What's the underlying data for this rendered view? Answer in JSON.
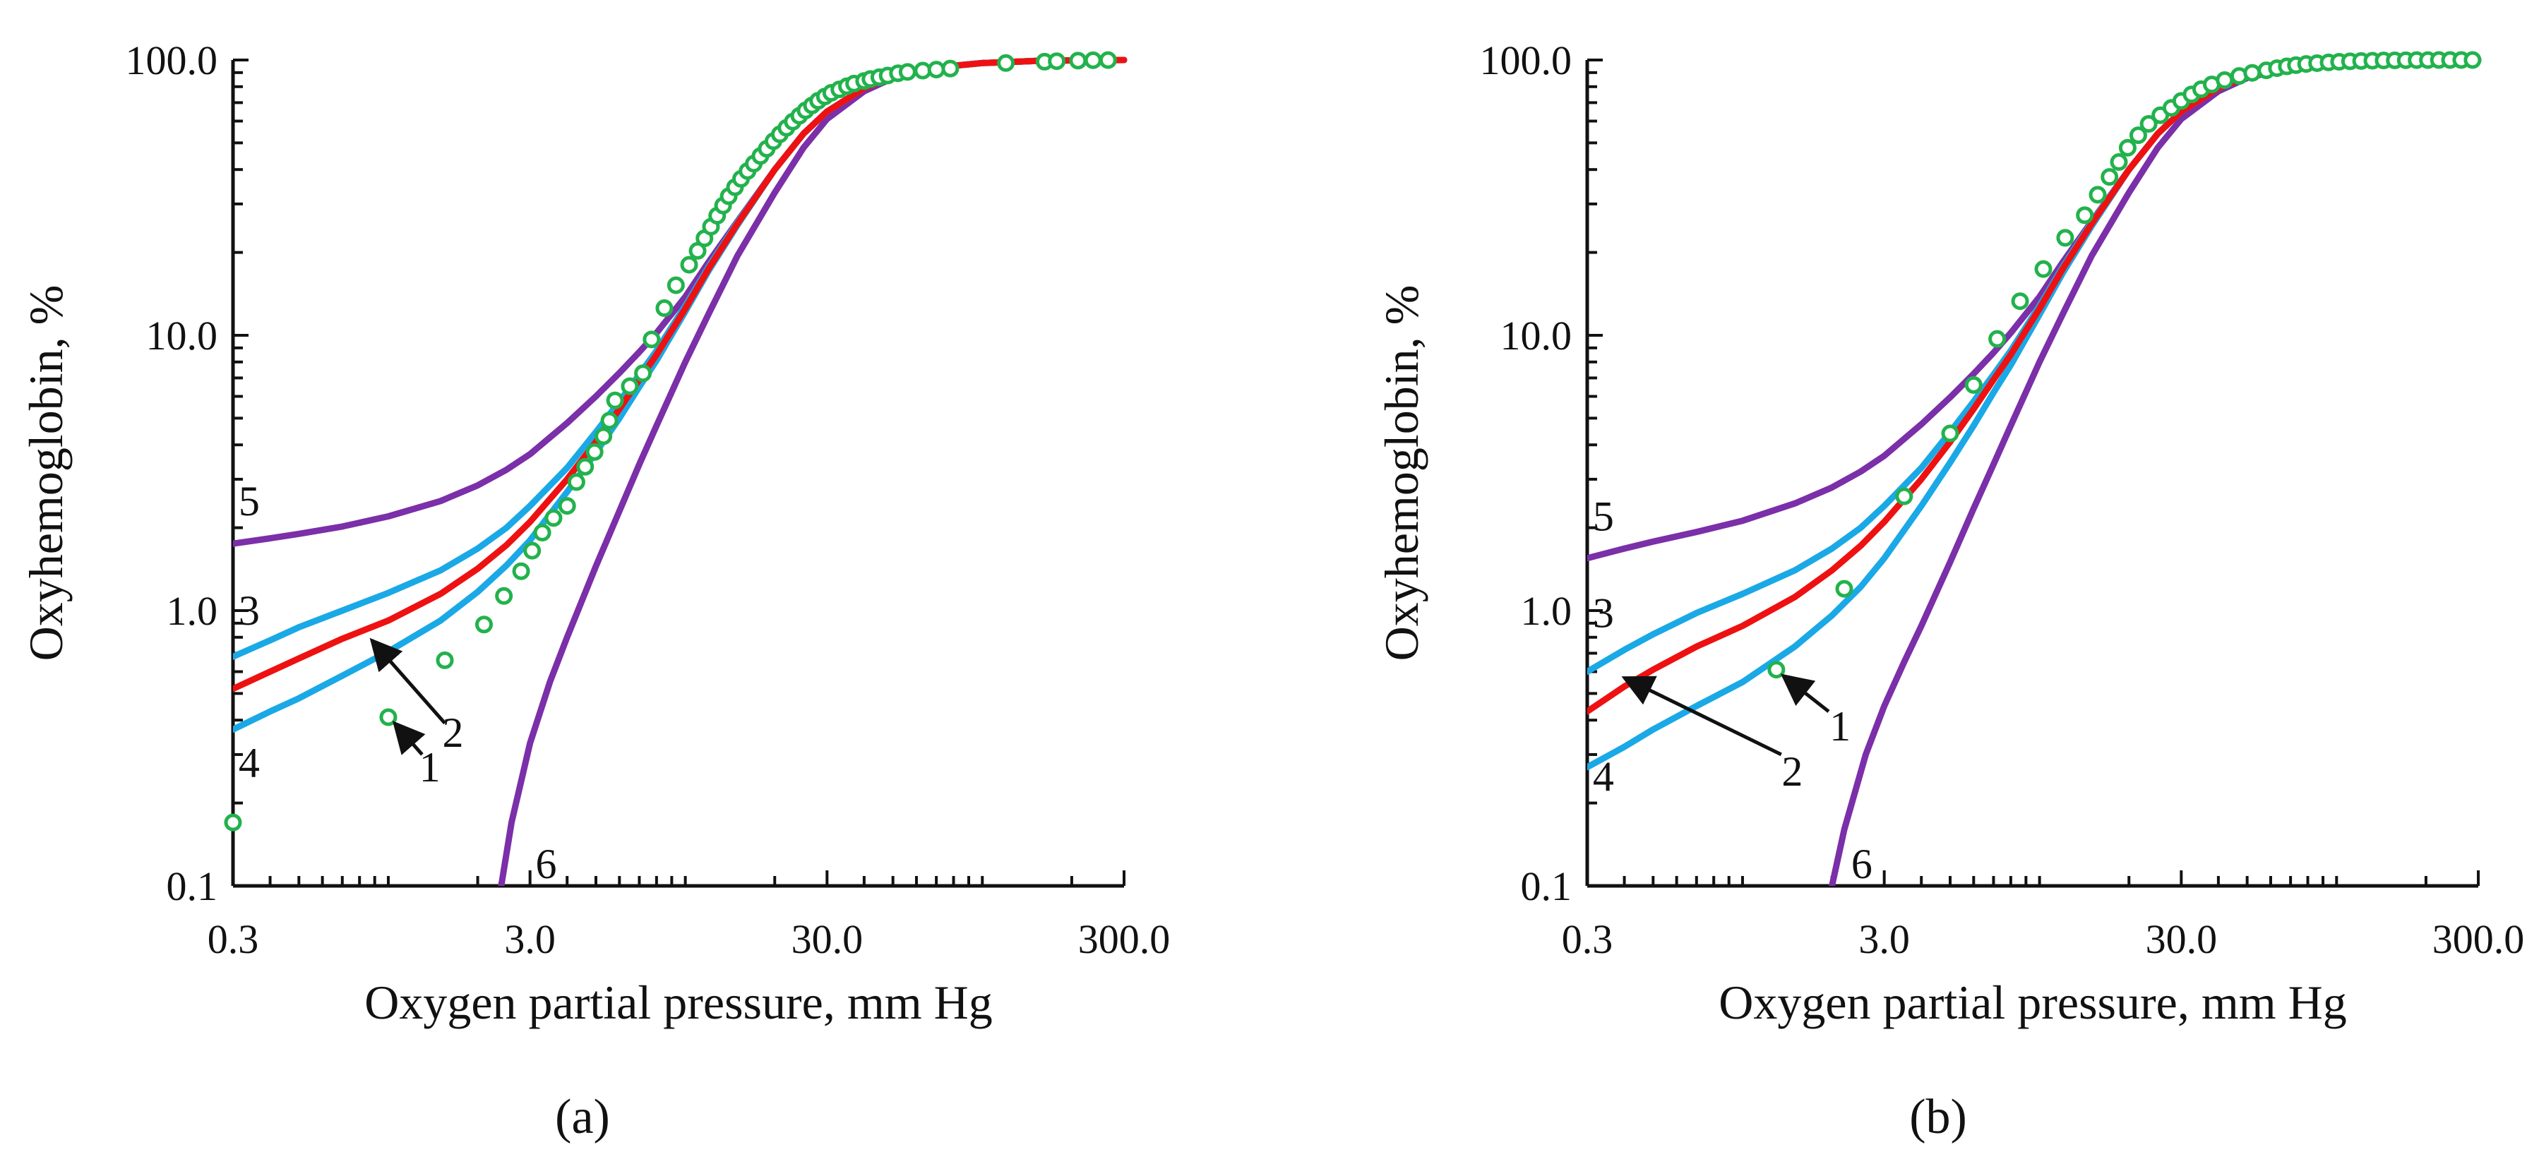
{
  "figure": {
    "panel_labels": [
      "(a)",
      "(b)"
    ]
  },
  "colors": {
    "experimental": "#22b24c",
    "model_red": "#ee1111",
    "model_blue": "#1aa9e6",
    "model_purple": "#7b2fa8",
    "axis": "#111111"
  },
  "chart_data": [
    {
      "type": "line",
      "panel": "(a)",
      "xlabel": "Oxygen partial pressure, mm Hg",
      "ylabel": "Oxyhemoglobin, %",
      "xscale": "log",
      "yscale": "log",
      "xlim": [
        0.3,
        300.0
      ],
      "ylim": [
        0.1,
        100.0
      ],
      "xticks": [
        "0.3",
        "3.0",
        "30.0",
        "300.0"
      ],
      "yticks": [
        "0.1",
        "1.0",
        "10.0",
        "100.0"
      ],
      "grid": false,
      "series": [
        {
          "name": "1",
          "style": "markers",
          "color": "#22b24c",
          "x": [
            0.3,
            1.0,
            1.55,
            2.1,
            2.45,
            2.8,
            3.05,
            3.3,
            3.6,
            4.0,
            4.3,
            4.6,
            4.95,
            5.3,
            5.55,
            5.8,
            6.5,
            7.2,
            7.7,
            8.5,
            9.3,
            10.3,
            11.0,
            11.6,
            12.2,
            12.8,
            13.4,
            14.0,
            14.7,
            15.4,
            16.2,
            17.0,
            17.9,
            18.8,
            19.8,
            20.8,
            21.9,
            23.0,
            24.2,
            25.4,
            26.7,
            28.0,
            29.5,
            31.0,
            33.0,
            35.0,
            37.0,
            40.0,
            42.0,
            45.0,
            48.0,
            52.0,
            56.0,
            63.0,
            70.0,
            78.0,
            120.0,
            162.0,
            178.0,
            210.0,
            236.0,
            265.0
          ],
          "y": [
            0.17,
            0.41,
            0.66,
            0.89,
            1.13,
            1.39,
            1.65,
            1.92,
            2.17,
            2.4,
            2.93,
            3.33,
            3.77,
            4.3,
            4.9,
            5.8,
            6.53,
            7.28,
            9.66,
            12.55,
            15.2,
            18.04,
            20.26,
            22.5,
            24.8,
            27.2,
            29.6,
            32.0,
            34.5,
            37.0,
            39.5,
            42.0,
            44.8,
            47.6,
            50.7,
            53.7,
            56.7,
            59.7,
            62.7,
            65.6,
            68.4,
            71.1,
            73.7,
            76.0,
            78.2,
            80.3,
            82.1,
            83.9,
            85.3,
            86.6,
            87.8,
            89.5,
            90.5,
            91.5,
            92.3,
            93.1,
            97.5,
            98.6,
            99.0,
            99.5,
            99.8,
            99.9
          ]
        },
        {
          "name": "2",
          "style": "line",
          "color": "#ee1111",
          "x": [
            0.3,
            0.4,
            0.5,
            0.7,
            1.0,
            1.5,
            2.0,
            2.5,
            3.0,
            4.0,
            5.0,
            6.0,
            7.0,
            8.0,
            10.0,
            12.0,
            15.0,
            20.0,
            25.0,
            30.0,
            40.0,
            50.0,
            70.0,
            100.0,
            150.0,
            200.0,
            300.0
          ],
          "y": [
            0.52,
            0.6,
            0.67,
            0.79,
            0.92,
            1.15,
            1.42,
            1.73,
            2.1,
            3.0,
            4.1,
            5.4,
            6.9,
            8.5,
            12.5,
            17.5,
            25.5,
            40.0,
            54.0,
            65.0,
            79.0,
            87.0,
            94.0,
            97.5,
            99.2,
            99.7,
            100.0
          ]
        },
        {
          "name": "3",
          "style": "line",
          "color": "#1aa9e6",
          "x": [
            0.3,
            0.4,
            0.5,
            0.7,
            1.0,
            1.5,
            2.0,
            2.5,
            3.0,
            4.0,
            5.0,
            6.0,
            7.0,
            8.0,
            10.0,
            12.0,
            15.0,
            20.0,
            25.0,
            30.0,
            40.0,
            50.0,
            70.0,
            100.0,
            150.0,
            200.0,
            300.0
          ],
          "y": [
            0.68,
            0.78,
            0.87,
            1.0,
            1.16,
            1.4,
            1.68,
            2.0,
            2.4,
            3.3,
            4.45,
            5.75,
            7.2,
            8.8,
            12.8,
            17.8,
            25.8,
            40.0,
            54.0,
            65.0,
            79.0,
            87.0,
            94.0,
            97.5,
            99.2,
            99.7,
            100.0
          ]
        },
        {
          "name": "4",
          "style": "line",
          "color": "#1aa9e6",
          "x": [
            0.3,
            0.4,
            0.5,
            0.7,
            1.0,
            1.5,
            2.0,
            2.5,
            3.0,
            4.0,
            5.0,
            6.0,
            7.0,
            8.0,
            10.0,
            12.0,
            15.0,
            20.0,
            25.0,
            30.0,
            40.0,
            50.0,
            70.0,
            100.0,
            150.0,
            200.0,
            300.0
          ],
          "y": [
            0.37,
            0.43,
            0.48,
            0.58,
            0.71,
            0.92,
            1.17,
            1.46,
            1.8,
            2.7,
            3.75,
            5.0,
            6.5,
            8.1,
            12.2,
            17.2,
            25.2,
            40.0,
            54.0,
            65.0,
            79.0,
            87.0,
            94.0,
            97.5,
            99.2,
            99.7,
            100.0
          ]
        },
        {
          "name": "5",
          "style": "line",
          "color": "#7b2fa8",
          "x": [
            0.3,
            0.4,
            0.5,
            0.7,
            1.0,
            1.5,
            2.0,
            2.5,
            3.0,
            4.0,
            5.0,
            6.0,
            7.0,
            8.0,
            10.0,
            12.0,
            15.0,
            20.0,
            25.0,
            30.0,
            40.0,
            50.0,
            70.0,
            100.0,
            150.0,
            200.0,
            300.0
          ],
          "y": [
            1.75,
            1.83,
            1.9,
            2.02,
            2.2,
            2.5,
            2.85,
            3.25,
            3.7,
            4.8,
            6.0,
            7.3,
            8.7,
            10.2,
            13.8,
            18.5,
            26.0,
            40.0,
            54.0,
            65.0,
            79.0,
            87.0,
            94.0,
            97.5,
            99.2,
            99.7,
            100.0
          ]
        },
        {
          "name": "6",
          "style": "line",
          "color": "#7b2fa8",
          "x": [
            2.4,
            2.6,
            3.0,
            3.5,
            4.0,
            5.0,
            6.0,
            7.0,
            8.0,
            10.0,
            12.0,
            15.0,
            20.0,
            25.0,
            30.0,
            40.0,
            50.0,
            70.0,
            100.0,
            150.0,
            200.0,
            300.0
          ],
          "y": [
            0.1,
            0.17,
            0.33,
            0.55,
            0.8,
            1.45,
            2.3,
            3.4,
            4.7,
            8.0,
            12.0,
            19.5,
            33.0,
            48.0,
            61.0,
            77.0,
            86.0,
            94.0,
            97.5,
            99.2,
            99.7,
            100.0
          ]
        }
      ],
      "curve_labels": [
        {
          "text": "5",
          "x": 0.34,
          "y": 2.5
        },
        {
          "text": "3",
          "x": 0.34,
          "y": 1.0
        },
        {
          "text": "4",
          "x": 0.34,
          "y": 0.28
        },
        {
          "text": "2",
          "x": 1.65,
          "y": 0.36
        },
        {
          "text": "1",
          "x": 1.38,
          "y": 0.27
        },
        {
          "text": "6",
          "x": 3.4,
          "y": 0.12
        }
      ],
      "arrows": [
        {
          "from_x": 1.55,
          "from_y": 0.39,
          "to_x": 0.88,
          "to_y": 0.78
        },
        {
          "from_x": 1.3,
          "from_y": 0.3,
          "to_x": 1.05,
          "to_y": 0.39
        }
      ]
    },
    {
      "type": "line",
      "panel": "(b)",
      "xlabel": "Oxygen partial pressure, mm Hg",
      "ylabel": "Oxyhemoglobin, %",
      "xscale": "log",
      "yscale": "log",
      "xlim": [
        0.3,
        300.0
      ],
      "ylim": [
        0.1,
        100.0
      ],
      "xticks": [
        "0.3",
        "3.0",
        "30.0",
        "300.0"
      ],
      "yticks": [
        "0.1",
        "1.0",
        "10.0",
        "100.0"
      ],
      "grid": false,
      "series": [
        {
          "name": "1",
          "style": "markers",
          "color": "#22b24c",
          "x": [
            1.3,
            2.2,
            3.5,
            5.0,
            6.0,
            7.2,
            8.6,
            10.3,
            12.2,
            14.2,
            15.7,
            17.2,
            18.5,
            19.8,
            21.5,
            23.3,
            25.5,
            27.8,
            30.0,
            32.5,
            35.0,
            38.0,
            42.0,
            47.0,
            52.0,
            58.0,
            63.0,
            68.0,
            73.0,
            79.0,
            86.0,
            94.0,
            102.0,
            111.0,
            121.0,
            132.0,
            144.0,
            157.0,
            171.0,
            186.0,
            203.0,
            221.0,
            241.0,
            263.0,
            287.0
          ],
          "y": [
            0.61,
            1.2,
            2.6,
            4.4,
            6.6,
            9.7,
            13.3,
            17.4,
            22.6,
            27.3,
            32.4,
            37.6,
            42.6,
            48.0,
            53.3,
            58.6,
            63.0,
            67.0,
            71.0,
            75.0,
            78.3,
            81.5,
            84.5,
            87.5,
            89.8,
            91.7,
            93.4,
            94.8,
            95.8,
            96.7,
            97.4,
            98.0,
            98.5,
            98.9,
            99.2,
            99.4,
            99.6,
            99.7,
            99.8,
            99.9,
            99.9,
            100.0,
            100.0,
            100.0,
            100.0
          ]
        },
        {
          "name": "2",
          "style": "line",
          "color": "#ee1111",
          "x": [
            0.3,
            0.4,
            0.5,
            0.7,
            1.0,
            1.5,
            2.0,
            2.5,
            3.0,
            4.0,
            5.0,
            6.0,
            7.0,
            8.0,
            10.0,
            12.0,
            15.0,
            20.0,
            25.0,
            30.0,
            40.0,
            50.0,
            70.0,
            100.0,
            150.0,
            200.0,
            300.0
          ],
          "y": [
            0.43,
            0.53,
            0.61,
            0.74,
            0.88,
            1.12,
            1.4,
            1.72,
            2.1,
            3.0,
            4.1,
            5.4,
            6.9,
            8.5,
            12.5,
            17.5,
            25.5,
            40.0,
            54.0,
            65.0,
            79.0,
            87.0,
            94.0,
            97.5,
            99.2,
            99.7,
            100.0
          ]
        },
        {
          "name": "3",
          "style": "line",
          "color": "#1aa9e6",
          "x": [
            0.3,
            0.4,
            0.5,
            0.7,
            1.0,
            1.5,
            2.0,
            2.5,
            3.0,
            4.0,
            5.0,
            6.0,
            7.0,
            8.0,
            10.0,
            12.0,
            15.0,
            20.0,
            25.0,
            30.0,
            40.0,
            50.0,
            70.0,
            100.0,
            150.0,
            200.0,
            300.0
          ],
          "y": [
            0.6,
            0.72,
            0.82,
            0.98,
            1.15,
            1.4,
            1.68,
            2.0,
            2.4,
            3.3,
            4.45,
            5.75,
            7.2,
            8.8,
            12.8,
            17.8,
            25.8,
            40.0,
            54.0,
            65.0,
            79.0,
            87.0,
            94.0,
            97.5,
            99.2,
            99.7,
            100.0
          ]
        },
        {
          "name": "4",
          "style": "line",
          "color": "#1aa9e6",
          "x": [
            0.3,
            0.4,
            0.5,
            0.7,
            1.0,
            1.5,
            2.0,
            2.5,
            3.0,
            4.0,
            5.0,
            6.0,
            7.0,
            8.0,
            10.0,
            12.0,
            15.0,
            20.0,
            25.0,
            30.0,
            40.0,
            50.0,
            70.0,
            100.0,
            150.0,
            200.0,
            300.0
          ],
          "y": [
            0.27,
            0.32,
            0.37,
            0.45,
            0.55,
            0.74,
            0.96,
            1.22,
            1.55,
            2.4,
            3.45,
            4.7,
            6.2,
            7.8,
            11.9,
            16.9,
            25.0,
            40.0,
            54.0,
            65.0,
            79.0,
            87.0,
            94.0,
            97.5,
            99.2,
            99.7,
            100.0
          ]
        },
        {
          "name": "5",
          "style": "line",
          "color": "#7b2fa8",
          "x": [
            0.3,
            0.4,
            0.5,
            0.7,
            1.0,
            1.5,
            2.0,
            2.5,
            3.0,
            4.0,
            5.0,
            6.0,
            7.0,
            8.0,
            10.0,
            12.0,
            15.0,
            20.0,
            25.0,
            30.0,
            40.0,
            50.0,
            70.0,
            100.0,
            150.0,
            200.0,
            300.0
          ],
          "y": [
            1.55,
            1.68,
            1.78,
            1.93,
            2.12,
            2.45,
            2.8,
            3.2,
            3.65,
            4.75,
            5.95,
            7.25,
            8.65,
            10.2,
            13.8,
            18.5,
            26.0,
            40.0,
            54.0,
            65.0,
            79.0,
            87.0,
            94.0,
            97.5,
            99.2,
            99.7,
            100.0
          ]
        },
        {
          "name": "6",
          "style": "line",
          "color": "#7b2fa8",
          "x": [
            2.0,
            2.2,
            2.6,
            3.0,
            3.5,
            4.0,
            5.0,
            6.0,
            7.0,
            8.0,
            10.0,
            12.0,
            15.0,
            20.0,
            25.0,
            30.0,
            40.0,
            50.0,
            70.0,
            100.0,
            150.0,
            200.0,
            300.0
          ],
          "y": [
            0.1,
            0.16,
            0.3,
            0.45,
            0.65,
            0.88,
            1.5,
            2.35,
            3.4,
            4.7,
            8.0,
            12.0,
            19.5,
            33.0,
            48.0,
            61.0,
            77.0,
            86.0,
            94.0,
            97.5,
            99.2,
            99.7,
            100.0
          ]
        }
      ],
      "curve_labels": [
        {
          "text": "5",
          "x": 0.34,
          "y": 2.2
        },
        {
          "text": "3",
          "x": 0.34,
          "y": 0.98
        },
        {
          "text": "4",
          "x": 0.34,
          "y": 0.25
        },
        {
          "text": "2",
          "x": 1.47,
          "y": 0.26
        },
        {
          "text": "1",
          "x": 2.13,
          "y": 0.38
        },
        {
          "text": "6",
          "x": 2.52,
          "y": 0.12
        }
      ],
      "arrows": [
        {
          "from_x": 1.35,
          "from_y": 0.3,
          "to_x": 0.4,
          "to_y": 0.57
        },
        {
          "from_x": 1.95,
          "from_y": 0.43,
          "to_x": 1.37,
          "to_y": 0.58
        }
      ]
    }
  ]
}
